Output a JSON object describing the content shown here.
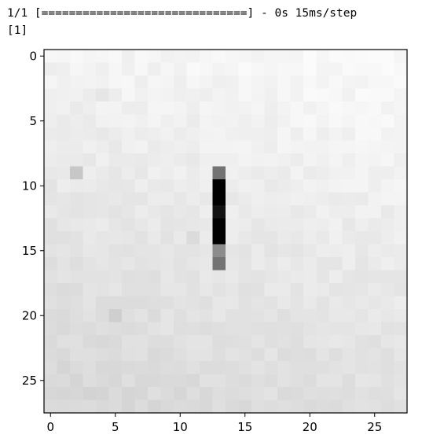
{
  "console": {
    "progress_line": "1/1 [==============================] - 0s 15ms/step",
    "result_line": "[1]"
  },
  "chart_data": {
    "type": "heatmap",
    "colormap": "gray_r",
    "grid": false,
    "title": "",
    "xlabel": "",
    "ylabel": "",
    "xlim": [
      -0.5,
      27.5
    ],
    "ylim": [
      27.5,
      -0.5
    ],
    "xticks": [
      0,
      5,
      10,
      15,
      20,
      25
    ],
    "yticks": [
      0,
      5,
      10,
      15,
      20,
      25
    ],
    "dims": [
      28,
      28
    ],
    "background_gradient": {
      "top_left": 0.05,
      "top_right": 0.02,
      "bottom_left": 0.16,
      "bottom_right": 0.12
    },
    "stroke_cells": [
      {
        "row": 9,
        "col": 13,
        "value": 0.55
      },
      {
        "row": 10,
        "col": 13,
        "value": 1.0
      },
      {
        "row": 11,
        "col": 13,
        "value": 1.0
      },
      {
        "row": 12,
        "col": 13,
        "value": 0.93
      },
      {
        "row": 13,
        "col": 13,
        "value": 1.0
      },
      {
        "row": 14,
        "col": 13,
        "value": 1.0
      },
      {
        "row": 15,
        "col": 13,
        "value": 0.45
      },
      {
        "row": 16,
        "col": 13,
        "value": 0.55
      }
    ],
    "noise_cells": [
      {
        "row": 9,
        "col": 2,
        "value": 0.22
      },
      {
        "row": 3,
        "col": 4,
        "value": 0.1
      },
      {
        "row": 20,
        "col": 5,
        "value": 0.19
      },
      {
        "row": 14,
        "col": 11,
        "value": 0.14
      }
    ]
  }
}
